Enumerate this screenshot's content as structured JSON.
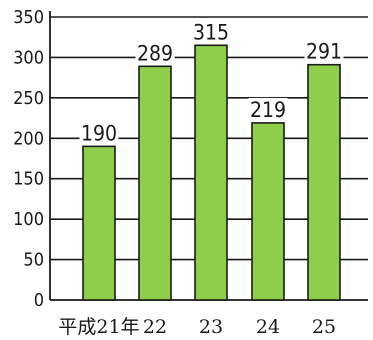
{
  "chart_data": {
    "type": "bar",
    "categories": [
      "平成21年",
      "22",
      "23",
      "24",
      "25"
    ],
    "values": [
      190,
      289,
      315,
      219,
      291
    ],
    "data_labels": [
      "190",
      "289",
      "315",
      "219",
      "291"
    ],
    "yticks": [
      "0",
      "50",
      "100",
      "150",
      "200",
      "250",
      "300",
      "350"
    ],
    "ylim": [
      0,
      350
    ],
    "grid": true,
    "bar_color": "#8dcf4a",
    "bar_edge_color": "#1a1a1a"
  }
}
